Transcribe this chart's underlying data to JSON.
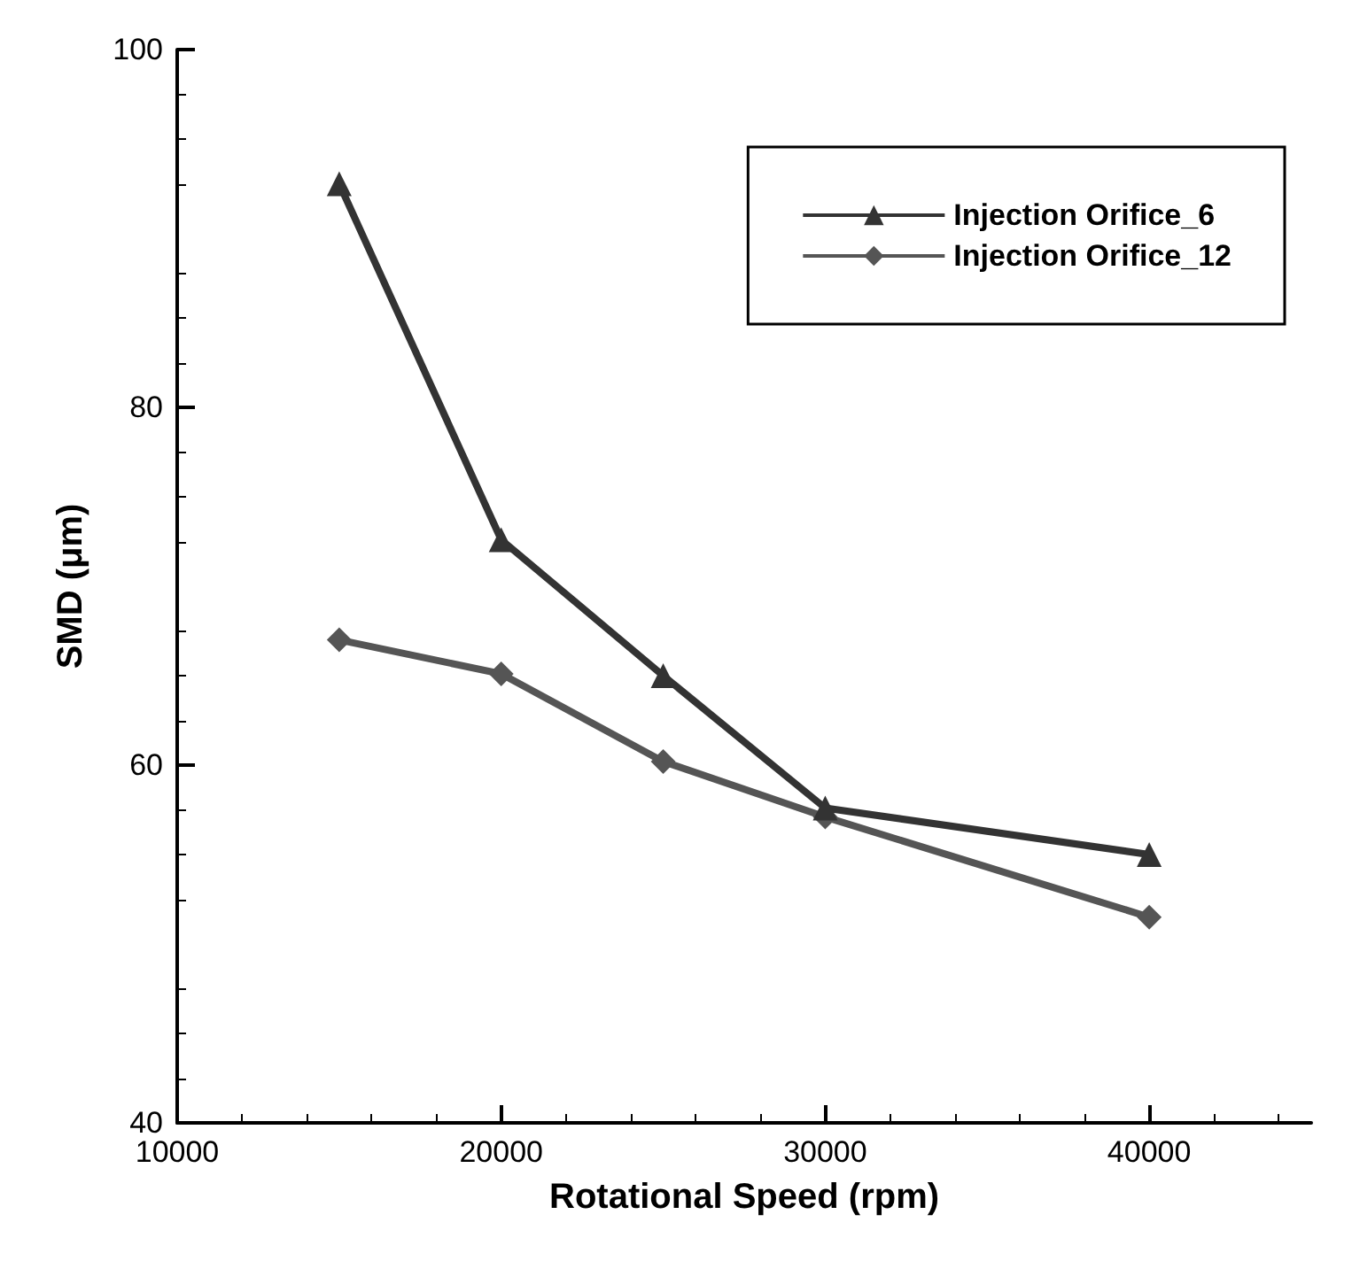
{
  "chart_data": {
    "type": "line",
    "xlabel": "Rotational Speed (rpm)",
    "ylabel": "SMD (μm)",
    "x": [
      15000,
      20000,
      25000,
      30000,
      40000
    ],
    "series": [
      {
        "name": "Injection Orifice_6",
        "color": "#333333",
        "marker": "triangle",
        "values": [
          92.5,
          72.6,
          65.0,
          57.6,
          55.0
        ]
      },
      {
        "name": "Injection Orifice_12",
        "color": "#555555",
        "marker": "diamond",
        "values": [
          67.0,
          65.1,
          60.2,
          57.1,
          51.5
        ]
      }
    ],
    "xlim": [
      10000,
      45000
    ],
    "xticks": [
      10000,
      20000,
      30000,
      40000
    ],
    "ylim": [
      40,
      100
    ],
    "yticks": [
      40,
      60,
      80,
      100
    ],
    "grid": false,
    "legend": "top right",
    "line_style": "solid"
  }
}
